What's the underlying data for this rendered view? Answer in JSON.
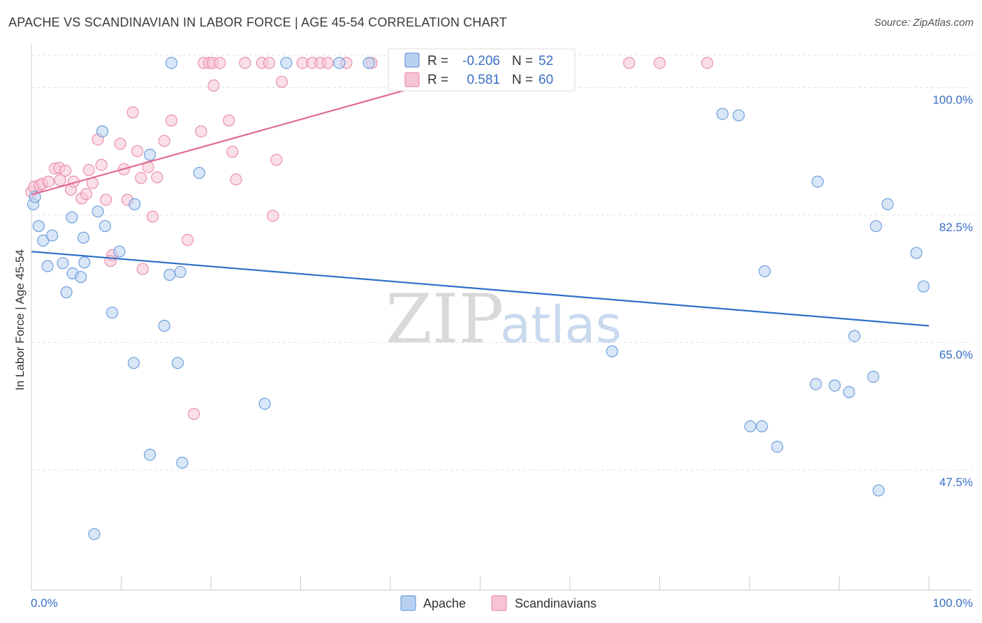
{
  "title": "APACHE VS SCANDINAVIAN IN LABOR FORCE | AGE 45-54 CORRELATION CHART",
  "source": "Source: ZipAtlas.com",
  "watermark": {
    "part1": "ZIP",
    "part2": "atlas"
  },
  "colors": {
    "apache": "#6f9fdc",
    "apache_fill": "#b9d1f1",
    "apache_line": "#2f6fc8",
    "scand": "#ea8fae",
    "scand_fill": "#f6c4d4",
    "scand_line": "#e06a94",
    "grid": "#e2e2e2",
    "tick_text": "#3a6fc4"
  },
  "legend": {
    "apache": {
      "r_label": "R =",
      "r_value": "-0.206",
      "n_label": "N =",
      "n_value": "52"
    },
    "scand": {
      "r_label": "R =",
      "r_value": "0.581",
      "n_label": "N =",
      "n_value": "60"
    }
  },
  "chart_data": {
    "type": "scatter",
    "title": "APACHE VS SCANDINAVIAN IN LABOR FORCE | AGE 45-54 CORRELATION CHART",
    "xlabel": "",
    "ylabel": "In Labor Force | Age 45-54",
    "xlim": [
      0,
      100
    ],
    "ylim": [
      31,
      106
    ],
    "x_tick_labels": [
      "0.0%",
      "100.0%"
    ],
    "y_ticks": [
      47.5,
      65.0,
      82.5,
      100.0
    ],
    "y_tick_labels": [
      "47.5%",
      "65.0%",
      "82.5%",
      "100.0%"
    ],
    "grid": true,
    "series": [
      {
        "name": "Apache",
        "trend": {
          "x": [
            0,
            100
          ],
          "y": [
            77.5,
            67.3
          ]
        },
        "points": [
          [
            0.2,
            84.0
          ],
          [
            0.8,
            81.0
          ],
          [
            1.3,
            79.0
          ],
          [
            2.3,
            79.7
          ],
          [
            1.8,
            75.5
          ],
          [
            3.5,
            75.9
          ],
          [
            4.5,
            82.2
          ],
          [
            3.9,
            71.9
          ],
          [
            4.6,
            74.5
          ],
          [
            5.5,
            74.0
          ],
          [
            5.8,
            79.4
          ],
          [
            5.9,
            76.0
          ],
          [
            7.4,
            83.0
          ],
          [
            8.2,
            81.0
          ],
          [
            7.9,
            94.0
          ],
          [
            9.8,
            77.5
          ],
          [
            9.0,
            69.1
          ],
          [
            11.5,
            84.0
          ],
          [
            13.2,
            90.8
          ],
          [
            11.4,
            62.2
          ],
          [
            13.2,
            49.6
          ],
          [
            15.4,
            74.3
          ],
          [
            14.8,
            67.3
          ],
          [
            16.6,
            74.7
          ],
          [
            16.3,
            62.2
          ],
          [
            16.8,
            48.5
          ],
          [
            18.7,
            88.3
          ],
          [
            7.0,
            38.7
          ],
          [
            15.6,
            103.4
          ],
          [
            28.4,
            103.4
          ],
          [
            34.3,
            103.4
          ],
          [
            37.6,
            103.4
          ],
          [
            26.0,
            56.6
          ],
          [
            64.7,
            63.8
          ],
          [
            77.0,
            96.4
          ],
          [
            78.8,
            96.2
          ],
          [
            80.1,
            53.5
          ],
          [
            81.4,
            53.5
          ],
          [
            81.7,
            74.8
          ],
          [
            83.1,
            50.7
          ],
          [
            87.6,
            87.1
          ],
          [
            87.4,
            59.3
          ],
          [
            89.5,
            59.1
          ],
          [
            91.1,
            58.2
          ],
          [
            91.7,
            65.9
          ],
          [
            93.8,
            60.3
          ],
          [
            94.1,
            81.0
          ],
          [
            94.4,
            44.7
          ],
          [
            95.4,
            84.0
          ],
          [
            98.6,
            77.3
          ],
          [
            99.4,
            72.7
          ],
          [
            0.4,
            85.0
          ]
        ]
      },
      {
        "name": "Scandinavians",
        "trend": {
          "x": [
            0,
            52.5
          ],
          "y": [
            85.3,
            103.4
          ]
        },
        "points": [
          [
            0.0,
            85.7
          ],
          [
            0.3,
            86.4
          ],
          [
            0.9,
            86.6
          ],
          [
            1.2,
            86.8
          ],
          [
            1.9,
            87.1
          ],
          [
            2.6,
            88.9
          ],
          [
            3.1,
            89.0
          ],
          [
            3.2,
            87.3
          ],
          [
            3.8,
            88.6
          ],
          [
            4.4,
            86.0
          ],
          [
            4.7,
            87.1
          ],
          [
            5.6,
            84.8
          ],
          [
            6.1,
            85.4
          ],
          [
            6.4,
            88.7
          ],
          [
            6.8,
            86.9
          ],
          [
            7.4,
            92.9
          ],
          [
            7.8,
            89.4
          ],
          [
            8.3,
            84.6
          ],
          [
            9.0,
            77.0
          ],
          [
            8.8,
            76.2
          ],
          [
            9.9,
            92.3
          ],
          [
            10.3,
            88.8
          ],
          [
            10.7,
            84.6
          ],
          [
            11.3,
            96.6
          ],
          [
            11.8,
            91.3
          ],
          [
            12.2,
            87.6
          ],
          [
            12.4,
            75.1
          ],
          [
            13.0,
            89.1
          ],
          [
            13.5,
            82.3
          ],
          [
            14.0,
            87.7
          ],
          [
            14.8,
            92.7
          ],
          [
            15.6,
            95.5
          ],
          [
            17.4,
            79.1
          ],
          [
            18.9,
            94.0
          ],
          [
            19.2,
            103.4
          ],
          [
            19.8,
            103.4
          ],
          [
            20.2,
            103.4
          ],
          [
            20.3,
            100.3
          ],
          [
            21.0,
            103.4
          ],
          [
            22.0,
            95.5
          ],
          [
            22.4,
            91.2
          ],
          [
            22.8,
            87.4
          ],
          [
            23.8,
            103.4
          ],
          [
            25.7,
            103.4
          ],
          [
            26.5,
            103.4
          ],
          [
            26.9,
            82.4
          ],
          [
            27.3,
            90.1
          ],
          [
            27.9,
            100.8
          ],
          [
            30.2,
            103.4
          ],
          [
            31.3,
            103.4
          ],
          [
            32.2,
            103.4
          ],
          [
            33.0,
            103.4
          ],
          [
            35.1,
            103.4
          ],
          [
            37.9,
            103.4
          ],
          [
            40.6,
            103.4
          ],
          [
            52.4,
            103.4
          ],
          [
            66.6,
            103.4
          ],
          [
            70.0,
            103.4
          ],
          [
            75.3,
            103.4
          ],
          [
            18.1,
            55.2
          ]
        ]
      }
    ]
  },
  "bottom_legend": {
    "apache_label": "Apache",
    "scand_label": "Scandinavians"
  }
}
